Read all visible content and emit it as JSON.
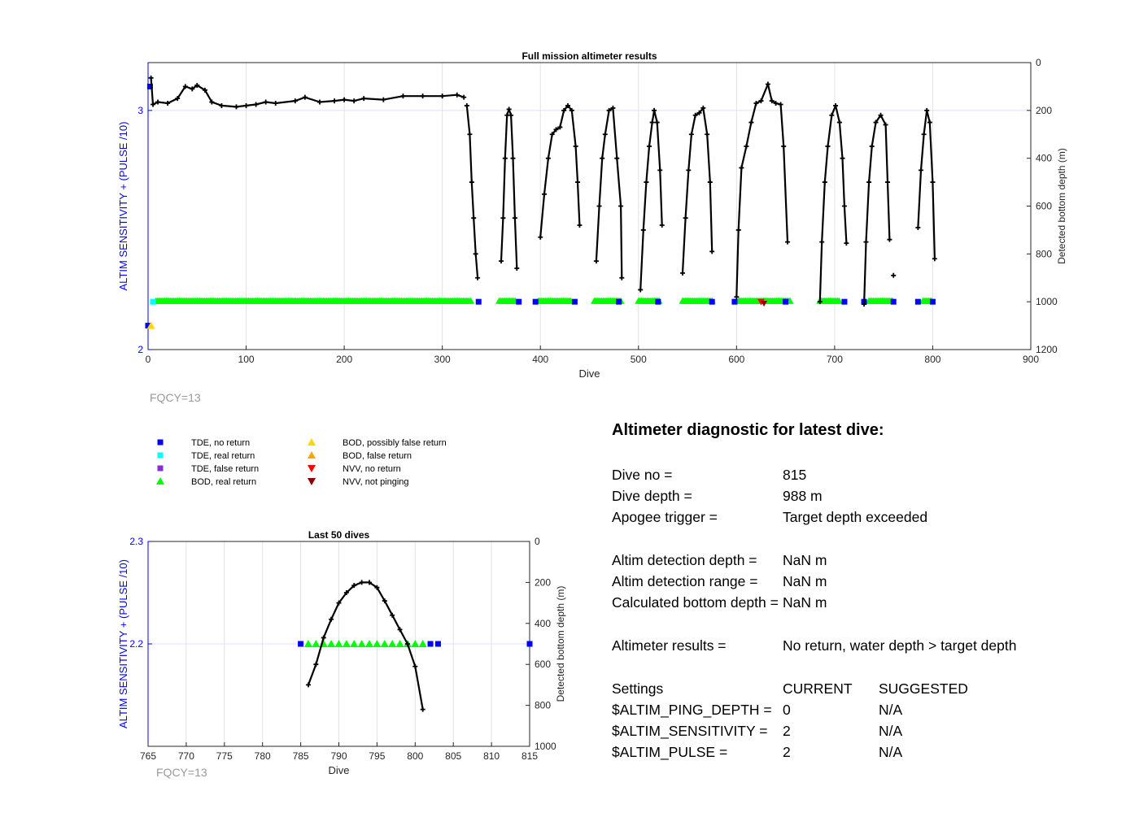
{
  "colors": {
    "tde_no_return": "#0000ff",
    "tde_real_return": "#00ffff",
    "tde_false_return": "#8a2be2",
    "bod_real_return": "#00ff00",
    "bod_possibly_false": "#ffd700",
    "bod_false_return": "#ffa500",
    "nvv_no_return": "#ff0000",
    "nvv_not_pinging": "#8b0000",
    "left_axis": "#0000ff",
    "depth_line": "#000000",
    "fqcy_text": "#999999"
  },
  "fqcy_label": "FQCY=13",
  "legend": [
    {
      "label": "TDE, no return",
      "icon": "square",
      "color": "#0000ff"
    },
    {
      "label": "TDE, real return",
      "icon": "square",
      "color": "#00ffff"
    },
    {
      "label": "TDE, false return",
      "icon": "square",
      "color": "#8a2be2"
    },
    {
      "label": "BOD, real return",
      "icon": "triangle-up",
      "color": "#00ff00"
    },
    {
      "label": "BOD, possibly false return",
      "icon": "triangle-up",
      "color": "#ffd700"
    },
    {
      "label": "BOD, false return",
      "icon": "triangle-up",
      "color": "#ffa500"
    },
    {
      "label": "NVV, no return",
      "icon": "triangle-down",
      "color": "#ff0000"
    },
    {
      "label": "NVV, not pinging",
      "icon": "triangle-down",
      "color": "#8b0000"
    }
  ],
  "chart_data": [
    {
      "id": "full",
      "type": "line",
      "title": "Full mission altimeter results",
      "xlabel": "Dive",
      "ylabel_left": "ALTIM SENSITIVITY + (PULSE /10)",
      "ylabel_right": "Detected bottom depth (m)",
      "xlim": [
        0,
        900
      ],
      "xticks": [
        0,
        100,
        200,
        300,
        400,
        500,
        600,
        700,
        800,
        900
      ],
      "ylim_left": [
        2,
        3.2
      ],
      "yticks_left": [
        2,
        3
      ],
      "ylim_right": [
        1200,
        0
      ],
      "yticks_right": [
        0,
        200,
        400,
        600,
        800,
        1000,
        1200
      ],
      "grid": true,
      "depth_series": [
        [
          3,
          64
        ],
        [
          5,
          175
        ],
        [
          10,
          165
        ],
        [
          20,
          170
        ],
        [
          30,
          150
        ],
        [
          38,
          100
        ],
        [
          45,
          110
        ],
        [
          50,
          95
        ],
        [
          58,
          115
        ],
        [
          65,
          165
        ],
        [
          75,
          180
        ],
        [
          90,
          185
        ],
        [
          100,
          180
        ],
        [
          110,
          175
        ],
        [
          120,
          165
        ],
        [
          130,
          170
        ],
        [
          150,
          160
        ],
        [
          160,
          145
        ],
        [
          175,
          165
        ],
        [
          190,
          160
        ],
        [
          200,
          155
        ],
        [
          210,
          160
        ],
        [
          220,
          150
        ],
        [
          240,
          155
        ],
        [
          260,
          140
        ],
        [
          280,
          140
        ],
        [
          300,
          140
        ],
        [
          315,
          135
        ],
        [
          322,
          145
        ],
        [
          null,
          null
        ],
        [
          325,
          180
        ],
        [
          328,
          300
        ],
        [
          330,
          500
        ],
        [
          332,
          650
        ],
        [
          334,
          800
        ],
        [
          336,
          900
        ],
        [
          null,
          null
        ],
        [
          360,
          830
        ],
        [
          362,
          650
        ],
        [
          364,
          400
        ],
        [
          366,
          220
        ],
        [
          368,
          195
        ],
        [
          370,
          220
        ],
        [
          372,
          400
        ],
        [
          374,
          650
        ],
        [
          376,
          860
        ],
        [
          null,
          null
        ],
        [
          400,
          730
        ],
        [
          404,
          550
        ],
        [
          408,
          400
        ],
        [
          412,
          300
        ],
        [
          416,
          280
        ],
        [
          420,
          270
        ],
        [
          424,
          200
        ],
        [
          428,
          180
        ],
        [
          432,
          200
        ],
        [
          436,
          350
        ],
        [
          438,
          500
        ],
        [
          440,
          680
        ],
        [
          null,
          null
        ],
        [
          457,
          830
        ],
        [
          460,
          600
        ],
        [
          463,
          400
        ],
        [
          466,
          300
        ],
        [
          470,
          200
        ],
        [
          474,
          190
        ],
        [
          478,
          400
        ],
        [
          482,
          600
        ],
        [
          483,
          900
        ],
        [
          null,
          null
        ],
        [
          502,
          950
        ],
        [
          505,
          700
        ],
        [
          508,
          500
        ],
        [
          511,
          350
        ],
        [
          514,
          250
        ],
        [
          516,
          200
        ],
        [
          519,
          250
        ],
        [
          522,
          450
        ],
        [
          524,
          680
        ],
        [
          null,
          null
        ],
        [
          545,
          880
        ],
        [
          548,
          650
        ],
        [
          551,
          450
        ],
        [
          554,
          300
        ],
        [
          558,
          220
        ],
        [
          562,
          210
        ],
        [
          566,
          190
        ],
        [
          570,
          300
        ],
        [
          573,
          500
        ],
        [
          575,
          790
        ],
        [
          null,
          null
        ],
        [
          600,
          980
        ],
        [
          602,
          700
        ],
        [
          605,
          440
        ],
        [
          610,
          350
        ],
        [
          615,
          250
        ],
        [
          620,
          170
        ],
        [
          625,
          160
        ],
        [
          632,
          90
        ],
        [
          636,
          160
        ],
        [
          640,
          170
        ],
        [
          645,
          175
        ],
        [
          648,
          350
        ],
        [
          652,
          750
        ],
        [
          null,
          null
        ],
        [
          685,
          1000
        ],
        [
          687,
          750
        ],
        [
          690,
          500
        ],
        [
          693,
          350
        ],
        [
          697,
          220
        ],
        [
          701,
          180
        ],
        [
          705,
          250
        ],
        [
          708,
          400
        ],
        [
          710,
          600
        ],
        [
          712,
          755
        ],
        [
          null,
          null
        ],
        [
          730,
          1010
        ],
        [
          732,
          750
        ],
        [
          735,
          500
        ],
        [
          738,
          350
        ],
        [
          742,
          250
        ],
        [
          747,
          220
        ],
        [
          752,
          260
        ],
        [
          754,
          500
        ],
        [
          756,
          740
        ],
        [
          null,
          null
        ],
        [
          785,
          690
        ],
        [
          788,
          450
        ],
        [
          791,
          300
        ],
        [
          794,
          200
        ],
        [
          797,
          250
        ],
        [
          800,
          500
        ],
        [
          802,
          820
        ]
      ],
      "isolated_points": [
        [
          760,
          890
        ]
      ],
      "markers": {
        "tde_no_return": [
          [
            2,
            3.1
          ],
          [
            0,
            2.1
          ],
          [
            337,
            2.2
          ],
          [
            378,
            2.2
          ],
          [
            395,
            2.2
          ],
          [
            435,
            2.2
          ],
          [
            480,
            2.2
          ],
          [
            520,
            2.2
          ],
          [
            575,
            2.2
          ],
          [
            598,
            2.2
          ],
          [
            650,
            2.2
          ],
          [
            710,
            2.2
          ],
          [
            730,
            2.2
          ],
          [
            760,
            2.2
          ],
          [
            785,
            2.2
          ],
          [
            800,
            2.2
          ]
        ],
        "tde_real_return": [
          [
            5,
            2.2
          ]
        ],
        "bod_real_return_segments": [
          [
            8,
            330
          ],
          [
            358,
            375
          ],
          [
            398,
            432
          ],
          [
            455,
            482
          ],
          [
            500,
            522
          ],
          [
            545,
            575
          ],
          [
            602,
            655
          ],
          [
            685,
            705
          ],
          [
            735,
            760
          ],
          [
            790,
            800
          ]
        ],
        "bod_possibly_false": [
          [
            3,
            2.1
          ]
        ],
        "nvv_no_return": [
          [
            625,
            2.2
          ]
        ],
        "nvv_not_pinging": [
          [
            628,
            2.2
          ]
        ]
      }
    },
    {
      "id": "last50",
      "type": "line",
      "title": "Last 50 dives",
      "xlabel": "Dive",
      "ylabel_left": "ALTIM SENSITIVITY + (PULSE /10)",
      "ylabel_right": "Detected bottom depth (m)",
      "xlim": [
        765,
        815
      ],
      "xticks": [
        765,
        770,
        775,
        780,
        785,
        790,
        795,
        800,
        805,
        810,
        815
      ],
      "ylim_left": [
        2.1,
        2.3
      ],
      "yticks_left": [
        2.2,
        2.3
      ],
      "ylim_right": [
        1000,
        0
      ],
      "yticks_right": [
        0,
        200,
        400,
        600,
        800,
        1000
      ],
      "grid": true,
      "depth_series": [
        [
          786,
          700
        ],
        [
          787,
          600
        ],
        [
          788,
          470
        ],
        [
          789,
          380
        ],
        [
          790,
          300
        ],
        [
          791,
          250
        ],
        [
          792,
          215
        ],
        [
          793,
          200
        ],
        [
          794,
          200
        ],
        [
          795,
          225
        ],
        [
          796,
          290
        ],
        [
          797,
          360
        ],
        [
          798,
          430
        ],
        [
          799,
          500
        ],
        [
          800,
          610
        ],
        [
          801,
          820
        ]
      ],
      "markers": {
        "tde_no_return": [
          [
            785,
            2.2
          ],
          [
            802,
            2.2
          ],
          [
            803,
            2.2
          ],
          [
            815,
            2.2
          ]
        ],
        "bod_real_return": [
          [
            786,
            2.2
          ],
          [
            787,
            2.2
          ],
          [
            788,
            2.2
          ],
          [
            789,
            2.2
          ],
          [
            790,
            2.2
          ],
          [
            791,
            2.2
          ],
          [
            792,
            2.2
          ],
          [
            793,
            2.2
          ],
          [
            794,
            2.2
          ],
          [
            795,
            2.2
          ],
          [
            796,
            2.2
          ],
          [
            797,
            2.2
          ],
          [
            798,
            2.2
          ],
          [
            799,
            2.2
          ],
          [
            800,
            2.2
          ],
          [
            801,
            2.2
          ]
        ]
      }
    }
  ],
  "diagnostic": {
    "title": "Altimeter diagnostic for latest dive:",
    "dive_no_label": "Dive no =",
    "dive_no_value": "815",
    "dive_depth_label": "Dive depth =",
    "dive_depth_value": "988 m",
    "apogee_label": "Apogee trigger =",
    "apogee_value": "Target depth exceeded",
    "altim_det_depth_label": "Altim detection depth =",
    "altim_det_depth_value": "NaN m",
    "altim_det_range_label": "Altim detection range =",
    "altim_det_range_value": "NaN m",
    "calc_bottom_label": "Calculated bottom depth =",
    "calc_bottom_value": "NaN m",
    "results_label": "Altimeter results =",
    "results_value": "No return, water depth > target depth",
    "settings_label": "Settings",
    "current_header": "CURRENT",
    "suggested_header": "SUGGESTED",
    "ping_depth_label": "$ALTIM_PING_DEPTH =",
    "ping_depth_current": "0",
    "ping_depth_suggested": "N/A",
    "sensitivity_label": "$ALTIM_SENSITIVITY =",
    "sensitivity_current": "2",
    "sensitivity_suggested": "N/A",
    "pulse_label": "$ALTIM_PULSE =",
    "pulse_current": "2",
    "pulse_suggested": "N/A"
  }
}
